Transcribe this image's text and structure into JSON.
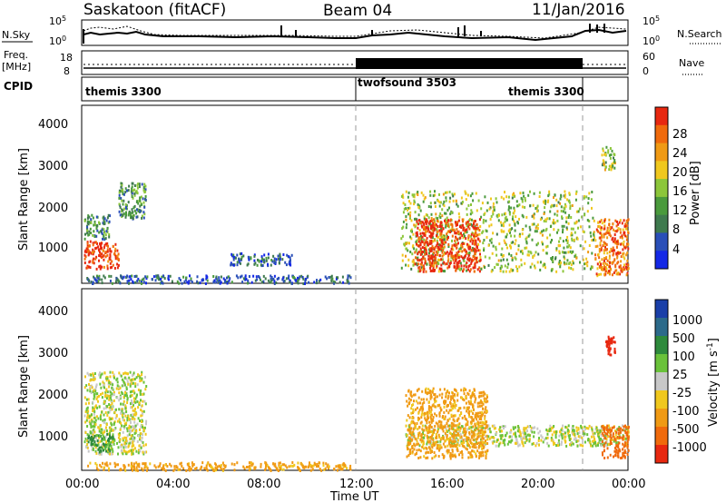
{
  "header": {
    "radar": "Saskatoon (fitACF)",
    "beam": "Beam 04",
    "date": "11/Jan/2016"
  },
  "noise_panel": {
    "left_label": "N.Sky",
    "left_ticks": [
      "10^5",
      "10^0"
    ],
    "right_ticks": [
      "10^5",
      "10^0"
    ],
    "right_label": "N.Search"
  },
  "freq_panel": {
    "left_label_1": "Freq.",
    "left_label_2": "[MHz]",
    "left_ticks": [
      "18",
      "8"
    ],
    "right_ticks": [
      "60",
      "0"
    ],
    "right_label": "Nave",
    "cpid_label": "CPID"
  },
  "cpid_segments": [
    {
      "label": "themis 3300"
    },
    {
      "label": "twofsound 3503"
    },
    {
      "label": "themis 3300"
    }
  ],
  "colors": {
    "power": [
      "#1428e6",
      "#2a4fb8",
      "#3f7a4e",
      "#4a9a3c",
      "#8cc63a",
      "#f0c81e",
      "#f09a14",
      "#f06a0c",
      "#e82810"
    ],
    "velocity": [
      "#1a3fa8",
      "#2c6a8a",
      "#2e8a3c",
      "#6ac23a",
      "#c8c8c8",
      "#f0c81e",
      "#f09a14",
      "#f06a0c",
      "#e82810"
    ]
  },
  "colorbars": {
    "power": {
      "title": "Power [dB]",
      "ticks": [
        "28",
        "24",
        "20",
        "16",
        "12",
        "8",
        "4"
      ]
    },
    "velocity": {
      "title": "Velocity [m s",
      "title_sup": "-1",
      "title_end": "]",
      "ticks": [
        "1000",
        "500",
        "100",
        "25",
        "-25",
        "-100",
        "-500",
        "-1000"
      ]
    }
  },
  "axes": {
    "x_ticks": [
      "00:00",
      "04:00",
      "08:00",
      "12:00",
      "16:00",
      "20:00",
      "00:00"
    ],
    "x_label": "Time UT",
    "y_label": "Slant Range [km]",
    "y_ticks": [
      "4000",
      "3000",
      "2000",
      "1000"
    ]
  },
  "chart_data": [
    {
      "type": "heatmap",
      "panel": "power",
      "xlabel": "Time UT",
      "ylabel": "Slant Range [km]",
      "colorbar_label": "Power [dB]",
      "x_range_hours": [
        0,
        24
      ],
      "y_range_km": [
        180,
        4600
      ],
      "regions": [
        {
          "t": [
            0.1,
            1.6
          ],
          "r": [
            550,
            1250
          ],
          "power": 28
        },
        {
          "t": [
            0.1,
            1.2
          ],
          "r": [
            1300,
            1900
          ],
          "power": 12
        },
        {
          "t": [
            1.6,
            2.8
          ],
          "r": [
            1800,
            2700
          ],
          "power": 12
        },
        {
          "t": [
            0.2,
            11.8
          ],
          "r": [
            200,
            400
          ],
          "power": 8
        },
        {
          "t": [
            6.5,
            9.2
          ],
          "r": [
            650,
            950
          ],
          "power": 8
        },
        {
          "t": [
            14.0,
            22.5
          ],
          "r": [
            500,
            2500
          ],
          "power": 16
        },
        {
          "t": [
            14.6,
            17.5
          ],
          "r": [
            500,
            1800
          ],
          "power": 28
        },
        {
          "t": [
            22.5,
            24.0
          ],
          "r": [
            400,
            1800
          ],
          "power": 24
        },
        {
          "t": [
            22.8,
            23.4
          ],
          "r": [
            3000,
            3600
          ],
          "power": 16
        }
      ]
    },
    {
      "type": "heatmap",
      "panel": "velocity",
      "xlabel": "Time UT",
      "ylabel": "Slant Range [km]",
      "colorbar_label": "Velocity [m s-1]",
      "x_range_hours": [
        0,
        24
      ],
      "y_range_km": [
        180,
        4600
      ],
      "regions": [
        {
          "t": [
            0.1,
            2.8
          ],
          "r": [
            600,
            2600
          ],
          "velocity": 0
        },
        {
          "t": [
            0.2,
            1.4
          ],
          "r": [
            650,
            1100
          ],
          "velocity": 100
        },
        {
          "t": [
            0.2,
            11.8
          ],
          "r": [
            200,
            400
          ],
          "velocity": -100
        },
        {
          "t": [
            14.2,
            24.0
          ],
          "r": [
            800,
            1300
          ],
          "velocity": 0
        },
        {
          "t": [
            14.2,
            17.8
          ],
          "r": [
            500,
            2200
          ],
          "velocity": -100
        },
        {
          "t": [
            22.8,
            24.0
          ],
          "r": [
            500,
            1300
          ],
          "velocity": -500
        },
        {
          "t": [
            23.0,
            23.4
          ],
          "r": [
            3000,
            3500
          ],
          "velocity": -1000
        }
      ]
    }
  ]
}
